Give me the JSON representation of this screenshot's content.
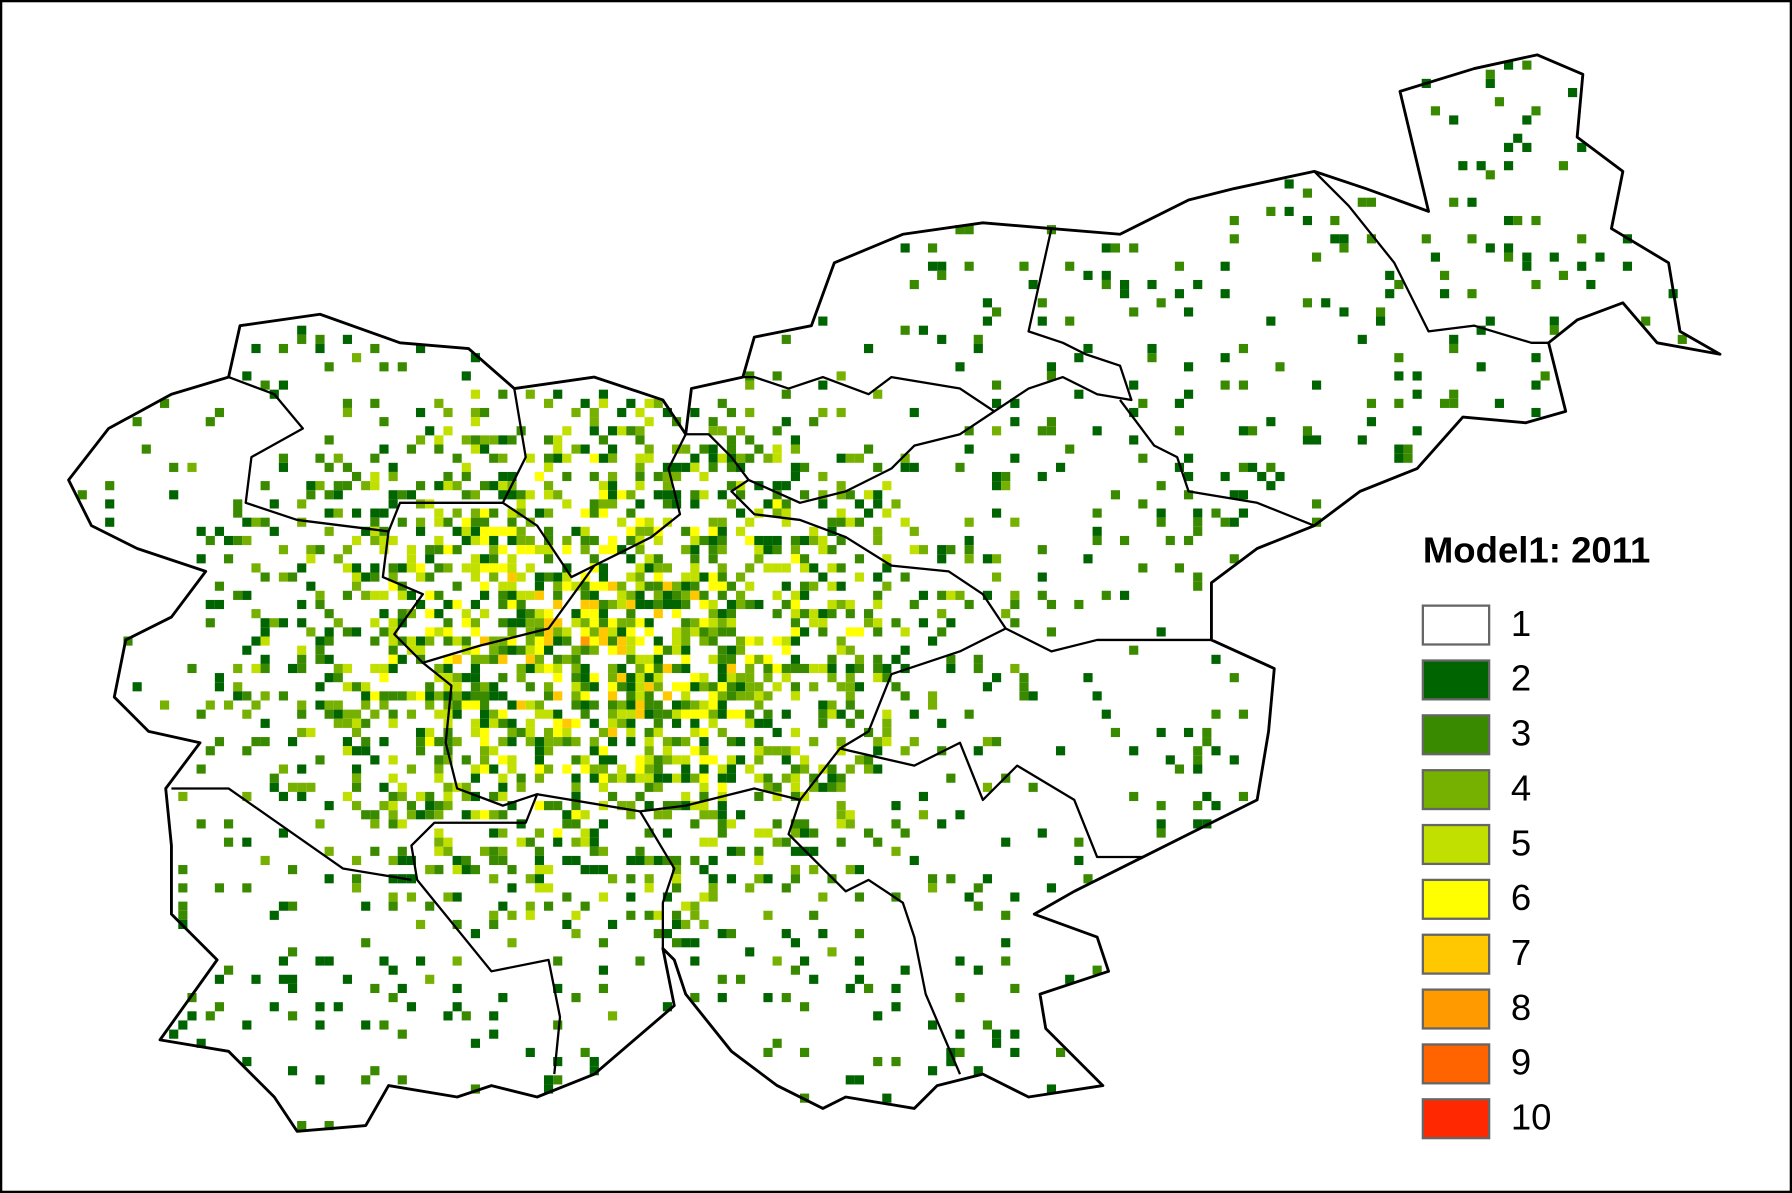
{
  "legend": {
    "title": "Model1: 2011",
    "items": [
      {
        "label": "1",
        "color": "#ffffff"
      },
      {
        "label": "2",
        "color": "#006400"
      },
      {
        "label": "3",
        "color": "#3a8a00"
      },
      {
        "label": "4",
        "color": "#76b000"
      },
      {
        "label": "5",
        "color": "#c2e000"
      },
      {
        "label": "6",
        "color": "#ffff00"
      },
      {
        "label": "7",
        "color": "#ffc800"
      },
      {
        "label": "8",
        "color": "#ff9a00"
      },
      {
        "label": "9",
        "color": "#ff6400"
      },
      {
        "label": "10",
        "color": "#ff2800"
      }
    ]
  }
}
